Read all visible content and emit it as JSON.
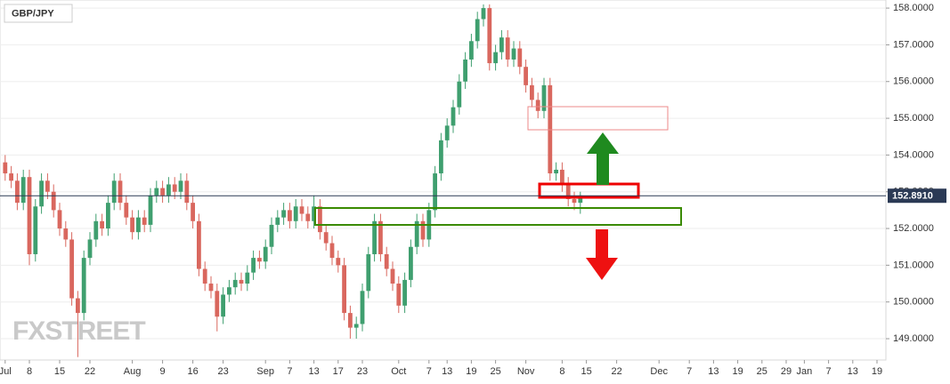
{
  "chart_data": {
    "type": "candlestick",
    "title": "GBP/JPY",
    "watermark": "FXSTREET",
    "up_color": "#3f9f6f",
    "down_color": "#d9675e",
    "grid": true,
    "ylim": [
      148.42,
      158.22
    ],
    "yticks": [
      {
        "value": 149,
        "label": "149.0000"
      },
      {
        "value": 150,
        "label": "150.0000"
      },
      {
        "value": 151,
        "label": "151.0000"
      },
      {
        "value": 152,
        "label": "152.0000"
      },
      {
        "value": 153,
        "label": "153.0000"
      },
      {
        "value": 154,
        "label": "154.0000"
      },
      {
        "value": 155,
        "label": "155.0000"
      },
      {
        "value": 156,
        "label": "156.0000"
      },
      {
        "value": 157,
        "label": "157.0000"
      },
      {
        "value": 158,
        "label": "158.0000"
      }
    ],
    "last_price": {
      "value": 152.891,
      "label": "152.8910"
    },
    "categories": [
      "Jul",
      null,
      null,
      null,
      "8",
      null,
      null,
      null,
      null,
      "15",
      null,
      null,
      null,
      null,
      "22",
      null,
      null,
      null,
      null,
      null,
      null,
      "Aug",
      null,
      null,
      null,
      null,
      "9",
      null,
      null,
      null,
      null,
      "16",
      null,
      null,
      null,
      null,
      "23",
      null,
      null,
      null,
      null,
      null,
      null,
      "Sep",
      null,
      null,
      null,
      "7",
      null,
      null,
      null,
      "13",
      null,
      null,
      null,
      "17",
      null,
      null,
      null,
      "23",
      null,
      null,
      null,
      null,
      null,
      "Oct",
      null,
      null,
      null,
      null,
      "7",
      null,
      null,
      "13",
      null,
      null,
      null,
      "19",
      null,
      null,
      null,
      "25",
      null,
      null,
      null,
      null,
      "Nov",
      null,
      null,
      null,
      null,
      null,
      "8",
      null,
      null,
      null,
      "15",
      null,
      null,
      null,
      null,
      "22",
      null,
      null,
      null,
      null,
      null,
      null,
      "Dec",
      null,
      null,
      null,
      null,
      "7",
      null,
      null,
      null,
      "13",
      null,
      null,
      null,
      "19",
      null,
      null,
      null,
      "25",
      null,
      null,
      null,
      "29",
      null,
      null,
      "Jan",
      null,
      null,
      null,
      "7",
      null,
      null,
      null,
      "13",
      null,
      null,
      null,
      "19",
      null
    ],
    "open": [
      153.8,
      153.5,
      153.3,
      152.7,
      153.4,
      151.3,
      152.6,
      153.3,
      153.0,
      152.5,
      152.0,
      151.7,
      150.1,
      149.7,
      151.2,
      151.7,
      152.2,
      152.0,
      152.7,
      153.3,
      152.7,
      152.3,
      151.9,
      152.3,
      152.1,
      152.9,
      153.1,
      152.9,
      153.2,
      153.0,
      153.3,
      152.7,
      152.2,
      150.9,
      150.5,
      150.3,
      149.6,
      150.2,
      150.4,
      150.6,
      150.5,
      150.8,
      151.2,
      151.1,
      151.5,
      152.1,
      152.3,
      152.5,
      152.2,
      152.6,
      152.4,
      152.2,
      152.6,
      151.9,
      151.6,
      151.2,
      151.0,
      149.7,
      149.3,
      149.4,
      150.3,
      151.3,
      152.2,
      151.3,
      150.9,
      150.5,
      149.9,
      150.6,
      151.5,
      152.2,
      151.7,
      152.5,
      153.5,
      154.4,
      154.8,
      155.3,
      156.0,
      156.6,
      157.1,
      157.7,
      158.0,
      156.5,
      156.8,
      157.2,
      156.6,
      156.9,
      156.4,
      155.9,
      155.5,
      155.2,
      155.9,
      153.5,
      153.6,
      153.2,
      152.8,
      152.7,
      null,
      null,
      null,
      null,
      null,
      null,
      null,
      null,
      null,
      null,
      null,
      null,
      null,
      null,
      null,
      null,
      null,
      null,
      null,
      null,
      null,
      null,
      null,
      null,
      null,
      null,
      null,
      null,
      null,
      null,
      null,
      null,
      null,
      null,
      null,
      null,
      null,
      null,
      null,
      null,
      null,
      null,
      null,
      null,
      null,
      null,
      null,
      null,
      null,
      null
    ],
    "high": [
      154.0,
      153.7,
      153.5,
      153.6,
      153.6,
      152.8,
      153.5,
      153.5,
      153.2,
      152.7,
      152.2,
      151.9,
      150.3,
      151.4,
      151.9,
      152.4,
      152.4,
      152.9,
      153.5,
      153.5,
      152.9,
      152.5,
      152.5,
      152.5,
      153.1,
      153.3,
      153.3,
      153.4,
      153.4,
      153.5,
      153.5,
      152.9,
      152.4,
      151.1,
      150.7,
      150.5,
      150.4,
      150.6,
      150.8,
      150.8,
      151.0,
      151.4,
      151.4,
      151.7,
      152.3,
      152.5,
      152.7,
      152.7,
      152.8,
      152.8,
      152.6,
      152.9,
      152.8,
      152.1,
      151.8,
      151.4,
      151.2,
      149.9,
      149.6,
      150.5,
      151.5,
      152.4,
      152.4,
      151.5,
      151.1,
      150.7,
      150.8,
      151.7,
      152.4,
      152.4,
      152.7,
      153.7,
      154.6,
      155.0,
      155.5,
      156.2,
      156.8,
      157.3,
      157.9,
      158.1,
      158.1,
      157.0,
      157.4,
      157.4,
      157.1,
      157.1,
      156.6,
      156.1,
      155.7,
      156.1,
      156.1,
      153.8,
      153.8,
      153.4,
      153.0,
      153.0,
      null,
      null,
      null,
      null,
      null,
      null,
      null,
      null,
      null,
      null,
      null,
      null,
      null,
      null,
      null,
      null,
      null,
      null,
      null,
      null,
      null,
      null,
      null,
      null,
      null,
      null,
      null,
      null,
      null,
      null,
      null,
      null,
      null,
      null,
      null,
      null,
      null,
      null,
      null,
      null,
      null,
      null,
      null,
      null,
      null,
      null,
      null,
      null,
      null,
      null
    ],
    "low": [
      153.3,
      153.1,
      152.5,
      152.5,
      151.0,
      151.1,
      152.4,
      152.8,
      152.3,
      151.8,
      151.5,
      149.9,
      148.5,
      149.5,
      151.0,
      151.5,
      151.8,
      151.8,
      152.5,
      152.5,
      152.1,
      151.7,
      151.7,
      151.9,
      151.9,
      152.7,
      152.7,
      152.7,
      152.8,
      152.8,
      152.5,
      152.0,
      150.7,
      150.3,
      150.1,
      149.2,
      149.4,
      150.0,
      150.2,
      150.3,
      150.3,
      150.6,
      150.9,
      150.9,
      151.3,
      151.9,
      152.1,
      152.0,
      152.0,
      152.2,
      152.0,
      152.0,
      151.7,
      151.4,
      151.0,
      150.8,
      149.5,
      149.0,
      149.0,
      149.2,
      150.1,
      151.1,
      151.1,
      150.7,
      150.3,
      149.7,
      149.7,
      150.4,
      151.3,
      151.5,
      151.5,
      152.3,
      153.3,
      154.2,
      154.6,
      155.1,
      155.8,
      156.4,
      156.9,
      157.5,
      156.3,
      156.3,
      156.6,
      156.4,
      156.4,
      156.2,
      155.7,
      155.3,
      155.0,
      155.0,
      153.3,
      153.3,
      153.0,
      152.6,
      152.5,
      152.4,
      null,
      null,
      null,
      null,
      null,
      null,
      null,
      null,
      null,
      null,
      null,
      null,
      null,
      null,
      null,
      null,
      null,
      null,
      null,
      null,
      null,
      null,
      null,
      null,
      null,
      null,
      null,
      null,
      null,
      null,
      null,
      null,
      null,
      null,
      null,
      null,
      null,
      null,
      null,
      null,
      null,
      null,
      null,
      null,
      null,
      null,
      null,
      null,
      null,
      null
    ],
    "close": [
      153.5,
      153.3,
      152.7,
      153.4,
      151.3,
      152.6,
      153.3,
      153.0,
      152.5,
      152.0,
      151.7,
      150.1,
      149.7,
      151.2,
      151.7,
      152.2,
      152.0,
      152.7,
      153.3,
      152.7,
      152.3,
      151.9,
      152.3,
      152.1,
      152.9,
      153.1,
      152.9,
      153.2,
      153.0,
      153.3,
      152.7,
      152.2,
      150.9,
      150.5,
      150.3,
      149.6,
      150.2,
      150.4,
      150.6,
      150.5,
      150.8,
      151.2,
      151.1,
      151.5,
      152.1,
      152.3,
      152.5,
      152.2,
      152.6,
      152.4,
      152.2,
      152.6,
      151.9,
      151.6,
      151.2,
      151.0,
      149.7,
      149.3,
      149.4,
      150.3,
      151.3,
      152.2,
      151.3,
      150.9,
      150.5,
      149.9,
      150.6,
      151.5,
      152.2,
      151.7,
      152.5,
      153.5,
      154.4,
      154.8,
      155.3,
      156.0,
      156.6,
      157.1,
      157.7,
      158.0,
      156.5,
      156.8,
      157.2,
      156.6,
      156.9,
      156.4,
      155.9,
      155.5,
      155.2,
      155.9,
      153.5,
      153.6,
      153.2,
      152.8,
      152.7,
      152.9,
      null,
      null,
      null,
      null,
      null,
      null,
      null,
      null,
      null,
      null,
      null,
      null,
      null,
      null,
      null,
      null,
      null,
      null,
      null,
      null,
      null,
      null,
      null,
      null,
      null,
      null,
      null,
      null,
      null,
      null,
      null,
      null,
      null,
      null,
      null,
      null,
      null,
      null,
      null,
      null,
      null,
      null,
      null,
      null,
      null,
      null,
      null,
      null,
      null,
      null
    ]
  }
}
